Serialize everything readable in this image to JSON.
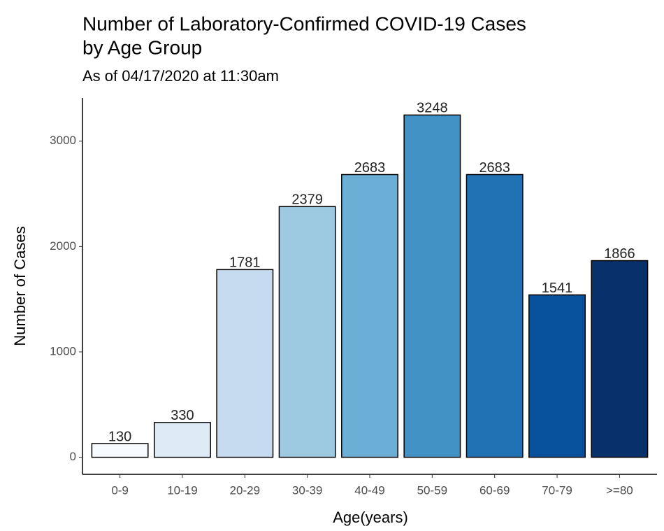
{
  "chart_data": {
    "type": "bar",
    "title": [
      "Number of Laboratory-Confirmed COVID-19 Cases",
      "by Age Group"
    ],
    "subtitle": "As of 04/17/2020 at 11:30am",
    "x_label": "Age(years)",
    "y_label": "Number of Cases",
    "categories": [
      "0-9",
      "10-19",
      "20-29",
      "30-39",
      "40-49",
      "50-59",
      "60-69",
      "70-79",
      ">=80"
    ],
    "values": [
      130,
      330,
      1781,
      2379,
      2683,
      3248,
      2683,
      1541,
      1866
    ],
    "colors": [
      "#f7fbff",
      "#deebf7",
      "#c6dbef",
      "#9ecae1",
      "#6baed6",
      "#4292c6",
      "#2171b5",
      "#08519c",
      "#08306b"
    ],
    "ylim": [
      -162,
      3410
    ],
    "yticks": [
      0,
      1000,
      2000,
      3000
    ],
    "grid": false
  }
}
